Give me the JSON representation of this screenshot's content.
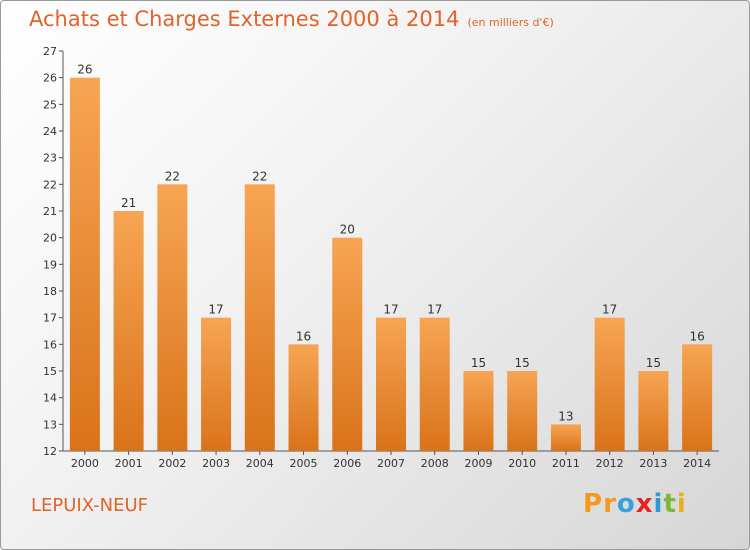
{
  "title": "Achats et Charges Externes 2000 à 2014",
  "subtitle": "(en milliers d'€)",
  "commune": "LEPUIX-NEUF",
  "logo": {
    "letters": [
      "P",
      "r",
      "o",
      "x",
      "i",
      "t",
      "i"
    ],
    "colors": [
      "#f39a1e",
      "#f39a1e",
      "#3aa0dc",
      "#e2261d",
      "#2e9ad4",
      "#7ab83a",
      "#e8b01a"
    ]
  },
  "colors": {
    "bar_light": "#f7a553",
    "bar_dark": "#d9731a",
    "title": "#e0632a"
  },
  "chart_data": {
    "type": "bar",
    "title": "Achats et Charges Externes 2000 à 2014",
    "subtitle": "(en milliers d'€)",
    "categories": [
      "2000",
      "2001",
      "2002",
      "2003",
      "2004",
      "2005",
      "2006",
      "2007",
      "2008",
      "2009",
      "2010",
      "2011",
      "2012",
      "2013",
      "2014"
    ],
    "values": [
      26,
      21,
      22,
      17,
      22,
      16,
      20,
      17,
      17,
      15,
      15,
      13,
      17,
      15,
      16
    ],
    "ylim": [
      12,
      27
    ],
    "yticks": [
      12,
      13,
      14,
      15,
      16,
      17,
      18,
      19,
      20,
      21,
      22,
      23,
      24,
      25,
      26,
      27
    ],
    "grid": false,
    "data_labels": true
  }
}
